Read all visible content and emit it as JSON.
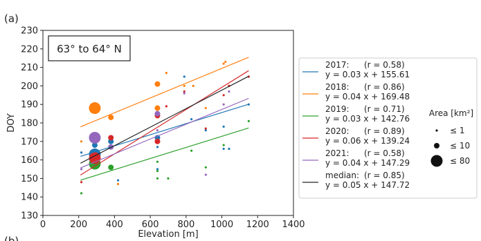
{
  "chart_data": {
    "type": "scatter",
    "panel_label": "(a)",
    "next_panel_label": "(b)",
    "annotation": "63° to 64° N",
    "xlabel": "Elevation [m]",
    "ylabel": "DOY",
    "xlim": [
      0,
      1400
    ],
    "ylim": [
      130,
      230
    ],
    "xticks": [
      0,
      200,
      400,
      600,
      800,
      1000,
      1200,
      1400
    ],
    "yticks": [
      130,
      140,
      150,
      160,
      170,
      180,
      190,
      200,
      210,
      220,
      230
    ],
    "grid": false,
    "legend_position": "right, outside plot",
    "size_legend": {
      "title": "Area [km²]",
      "entries": [
        {
          "label": "≤ 1",
          "area": 1
        },
        {
          "label": "≤ 10",
          "area": 10
        },
        {
          "label": "≤ 80",
          "area": 80
        }
      ]
    },
    "series": [
      {
        "name": "2017",
        "r_text": "(r = 0.58)",
        "equation": "y = 0.03 x + 155.61",
        "color": "#1f77b4",
        "slope": 0.03,
        "intercept": 155.61,
        "fit_x": [
          210,
          1150
        ],
        "points": [
          [
            215,
            164,
            1
          ],
          [
            290,
            168,
            10
          ],
          [
            290,
            163,
            80
          ],
          [
            380,
            170,
            10
          ],
          [
            420,
            149,
            1
          ],
          [
            640,
            172,
            10
          ],
          [
            640,
            167,
            1
          ],
          [
            640,
            155,
            1
          ],
          [
            790,
            205,
            1
          ],
          [
            830,
            182,
            1
          ],
          [
            910,
            176,
            1
          ],
          [
            1010,
            178,
            1
          ],
          [
            1010,
            166,
            1
          ],
          [
            1040,
            166,
            1
          ],
          [
            1150,
            190,
            1
          ]
        ]
      },
      {
        "name": "2018",
        "r_text": "(r = 0.86)",
        "equation": "y = 0.04 x + 169.48",
        "color": "#ff7f0e",
        "slope": 0.04,
        "intercept": 169.48,
        "fit_x": [
          210,
          1150
        ],
        "points": [
          [
            215,
            170,
            1
          ],
          [
            290,
            188,
            80
          ],
          [
            380,
            183,
            10
          ],
          [
            420,
            147,
            1
          ],
          [
            640,
            201,
            10
          ],
          [
            640,
            188,
            10
          ],
          [
            640,
            183,
            1
          ],
          [
            690,
            207,
            1
          ],
          [
            790,
            200,
            1
          ],
          [
            840,
            200,
            1
          ],
          [
            910,
            188,
            1
          ],
          [
            1010,
            212,
            1
          ],
          [
            1020,
            213,
            1
          ],
          [
            1040,
            200,
            1
          ]
        ]
      },
      {
        "name": "2019",
        "r_text": "(r = 0.71)",
        "equation": "y = 0.03 x + 142.76",
        "color": "#2ca02c",
        "slope": 0.03,
        "intercept": 142.76,
        "fit_x": [
          210,
          1150
        ],
        "points": [
          [
            215,
            142,
            1
          ],
          [
            290,
            158,
            80
          ],
          [
            380,
            156,
            10
          ],
          [
            640,
            159,
            1
          ],
          [
            640,
            154,
            1
          ],
          [
            640,
            150,
            1
          ],
          [
            700,
            150,
            1
          ],
          [
            830,
            165,
            1
          ],
          [
            910,
            156,
            1
          ],
          [
            1010,
            168,
            1
          ],
          [
            1150,
            181,
            1
          ]
        ]
      },
      {
        "name": "2020",
        "r_text": "(r = 0.89)",
        "equation": "y = 0.06 x + 139.24",
        "color": "#d62728",
        "slope": 0.06,
        "intercept": 139.24,
        "fit_x": [
          210,
          1150
        ],
        "points": [
          [
            215,
            148,
            1
          ],
          [
            290,
            161,
            80
          ],
          [
            380,
            172,
            10
          ],
          [
            640,
            184,
            10
          ],
          [
            640,
            170,
            10
          ],
          [
            690,
            189,
            1
          ],
          [
            790,
            197,
            1
          ],
          [
            910,
            177,
            1
          ],
          [
            1010,
            195,
            1
          ],
          [
            1040,
            200,
            1
          ],
          [
            1150,
            205,
            1
          ]
        ]
      },
      {
        "name": "2021",
        "r_text": "(r = 0.58)",
        "equation": "y = 0.04 x + 147.29",
        "color": "#9467bd",
        "slope": 0.04,
        "intercept": 147.29,
        "fit_x": [
          210,
          1150
        ],
        "points": [
          [
            215,
            155,
            1
          ],
          [
            290,
            172,
            80
          ],
          [
            380,
            167,
            10
          ],
          [
            640,
            185,
            10
          ],
          [
            640,
            176,
            1
          ],
          [
            790,
            196,
            1
          ],
          [
            910,
            152,
            1
          ],
          [
            1010,
            190,
            1
          ],
          [
            1040,
            197,
            1
          ]
        ]
      },
      {
        "name": "median",
        "r_text": "(r = 0.85)",
        "equation": "y = 0.05 x + 147.72",
        "color": "#222222",
        "slope": 0.05,
        "intercept": 147.72,
        "fit_x": [
          210,
          1150
        ],
        "points": []
      }
    ]
  }
}
